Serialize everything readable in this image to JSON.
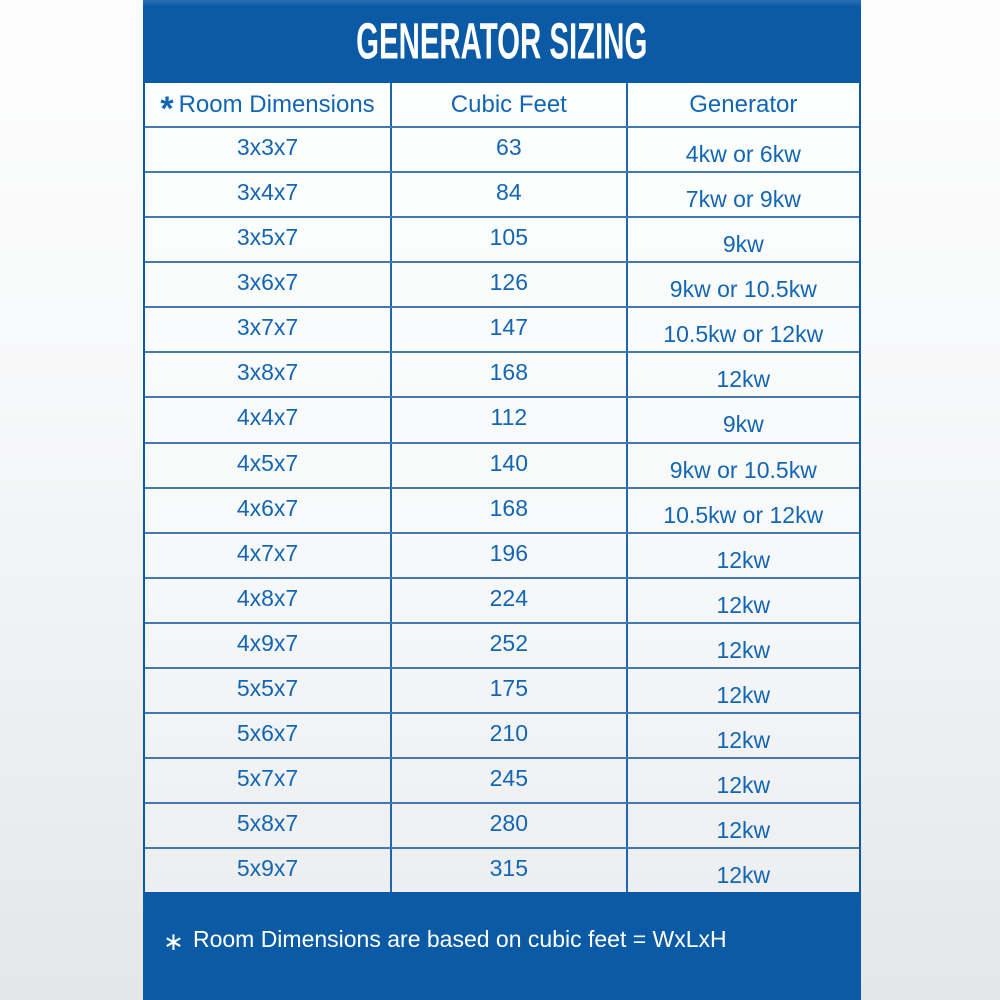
{
  "title": "GENERATOR SIZING",
  "colors": {
    "panel_blue": "#0b5aa6",
    "text_blue": "#1366b4",
    "divider_blue": "#2066ad",
    "white": "#ffffff"
  },
  "table": {
    "header_asterisk": "*",
    "headers": {
      "dimensions": "Room Dimensions",
      "cubic_feet": "Cubic Feet",
      "generator": "Generator"
    },
    "rows": [
      {
        "dimensions": "3x3x7",
        "cubic_feet": "63",
        "generator": "4kw or 6kw"
      },
      {
        "dimensions": "3x4x7",
        "cubic_feet": "84",
        "generator": "7kw or 9kw"
      },
      {
        "dimensions": "3x5x7",
        "cubic_feet": "105",
        "generator": "9kw"
      },
      {
        "dimensions": "3x6x7",
        "cubic_feet": "126",
        "generator": "9kw or 10.5kw"
      },
      {
        "dimensions": "3x7x7",
        "cubic_feet": "147",
        "generator": "10.5kw or 12kw"
      },
      {
        "dimensions": "3x8x7",
        "cubic_feet": "168",
        "generator": "12kw"
      },
      {
        "dimensions": "4x4x7",
        "cubic_feet": "112",
        "generator": "9kw"
      },
      {
        "dimensions": "4x5x7",
        "cubic_feet": "140",
        "generator": "9kw or 10.5kw"
      },
      {
        "dimensions": "4x6x7",
        "cubic_feet": "168",
        "generator": "10.5kw or 12kw"
      },
      {
        "dimensions": "4x7x7",
        "cubic_feet": "196",
        "generator": "12kw"
      },
      {
        "dimensions": "4x8x7",
        "cubic_feet": "224",
        "generator": "12kw"
      },
      {
        "dimensions": "4x9x7",
        "cubic_feet": "252",
        "generator": "12kw"
      },
      {
        "dimensions": "5x5x7",
        "cubic_feet": "175",
        "generator": "12kw"
      },
      {
        "dimensions": "5x6x7",
        "cubic_feet": "210",
        "generator": "12kw"
      },
      {
        "dimensions": "5x7x7",
        "cubic_feet": "245",
        "generator": "12kw"
      },
      {
        "dimensions": "5x8x7",
        "cubic_feet": "280",
        "generator": "12kw"
      },
      {
        "dimensions": "5x9x7",
        "cubic_feet": "315",
        "generator": "12kw"
      }
    ]
  },
  "footnote": {
    "asterisk": "∗",
    "text": "Room Dimensions are based on cubic feet = WxLxH"
  }
}
